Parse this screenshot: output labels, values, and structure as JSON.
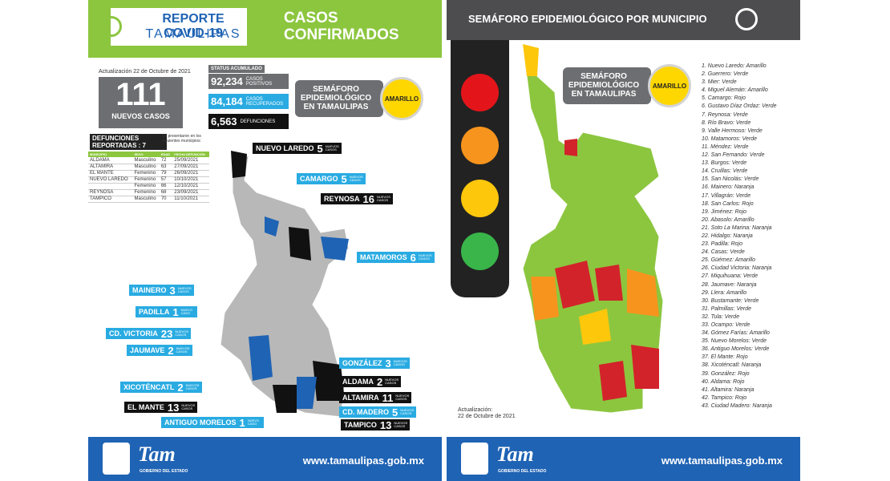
{
  "left": {
    "header": {
      "logo_line1": "REPORTE COVID-19",
      "logo_line2": "TAMAULIPAS",
      "title": "CASOS CONFIRMADOS"
    },
    "update": "Actualización 22 de Octubre de 2021",
    "new_cases": {
      "value": "111",
      "label": "NUEVOS CASOS"
    },
    "status": {
      "header": "STATUS ACUMULADO",
      "rows": [
        {
          "value": "92,234",
          "label": "CASOS POSITIVOS",
          "color": "#6d6e71"
        },
        {
          "value": "84,184",
          "label": "CASOS RECUPERADOS",
          "color": "#29abe2"
        },
        {
          "value": "6,563",
          "label": "DEFUNCIONES",
          "color": "#111111"
        }
      ]
    },
    "semaforo": {
      "label": "SEMÁFORO EPIDEMIOLÓGICO EN TAMAULIPAS",
      "level": "AMARILLO"
    },
    "deaths": {
      "header": "DEFUNCIONES REPORTADAS : 7",
      "note": "Se presentaron en los siguientes municipios:",
      "columns": [
        "MUNICIPIO",
        "SEXO",
        "EDAD",
        "FECHA DEFUNCIÓN"
      ],
      "rows": [
        [
          "ALDAMA",
          "Masculino",
          "72",
          "25/09/2021"
        ],
        [
          "ALTAMIRA",
          "Masculino",
          "63",
          "27/09/2021"
        ],
        [
          "EL MANTE",
          "Femenino",
          "79",
          "26/09/2021"
        ],
        [
          "NUEVO LAREDO",
          "Femenino",
          "57",
          "10/10/2021"
        ],
        [
          "",
          "Femenino",
          "66",
          "12/10/2021"
        ],
        [
          "REYNOSA",
          "Femenino",
          "68",
          "23/09/2021"
        ],
        [
          "TAMPICO",
          "Masculino",
          "70",
          "11/10/2021"
        ]
      ]
    },
    "map_labels": [
      {
        "name": "NUEVO LAREDO",
        "value": "5",
        "cases": "NUEVOS CASOS",
        "style": "black"
      },
      {
        "name": "CAMARGO",
        "value": "5",
        "cases": "NUEVOS CASOS",
        "style": "blue"
      },
      {
        "name": "REYNOSA",
        "value": "16",
        "cases": "NUEVOS CASOS",
        "style": "black"
      },
      {
        "name": "MATAMOROS",
        "value": "6",
        "cases": "NUEVOS CASOS",
        "style": "blue"
      },
      {
        "name": "MAINERO",
        "value": "3",
        "cases": "NUEVOS CASOS",
        "style": "blue"
      },
      {
        "name": "PADILLA",
        "value": "1",
        "cases": "NUEVO CASO",
        "style": "blue"
      },
      {
        "name": "CD. VICTORIA",
        "value": "23",
        "cases": "NUEVOS CASOS",
        "style": "blue"
      },
      {
        "name": "JAUMAVE",
        "value": "2",
        "cases": "NUEVOS CASOS",
        "style": "blue"
      },
      {
        "name": "GONZÁLEZ",
        "value": "3",
        "cases": "NUEVOS CASOS",
        "style": "blue"
      },
      {
        "name": "ALDAMA",
        "value": "2",
        "cases": "NUEVOS CASOS",
        "style": "black"
      },
      {
        "name": "XICOTÉNCATL",
        "value": "2",
        "cases": "NUEVOS CASOS",
        "style": "blue"
      },
      {
        "name": "ALTAMIRA",
        "value": "11",
        "cases": "NUEVOS CASOS",
        "style": "black"
      },
      {
        "name": "EL MANTE",
        "value": "13",
        "cases": "NUEVOS CASOS",
        "style": "black"
      },
      {
        "name": "CD. MADERO",
        "value": "5",
        "cases": "NUEVOS CASOS",
        "style": "blue"
      },
      {
        "name": "ANTIGUO MORELOS",
        "value": "1",
        "cases": "NUEVO CASO",
        "style": "blue"
      },
      {
        "name": "TAMPICO",
        "value": "13",
        "cases": "NUEVOS CASOS",
        "style": "black"
      }
    ],
    "footer": {
      "brand": "Tam",
      "sub": "GOBIERNO DEL ESTADO",
      "url": "www.tamaulipas.gob.mx"
    }
  },
  "right": {
    "header": {
      "title": "SEMÁFORO EPIDEMIOLÓGICO POR MUNICIPIO"
    },
    "semaforo": {
      "label": "SEMÁFORO EPIDEMIOLÓGICO EN TAMAULIPAS",
      "level": "AMARILLO"
    },
    "traffic_light": [
      "#e3151a",
      "#f7941d",
      "#fdc70c",
      "#39b54a"
    ],
    "municipios": [
      "1. Nuevo Laredo: Amarillo",
      "2. Guerrero: Verde",
      "3. Mier: Verde",
      "4. Miguel Alemán: Amarillo",
      "5. Camargo: Rojo",
      "6. Gustavo Díaz Ordaz: Verde",
      "7. Reynosa: Verde",
      "8. Río Bravo: Verde",
      "9. Valle Hermoso: Verde",
      "10. Matamoros: Verde",
      "11. Méndez: Verde",
      "12. San Fernando: Verde",
      "13. Burgos: Verde",
      "14. Cruillas: Verde",
      "15. San Nicolás: Verde",
      "16. Mainero: Naranja",
      "17. Villagrán: Verde",
      "18. San Carlos: Rojo",
      "19. Jiménez: Rojo",
      "20. Abasolo: Amarillo",
      "21. Soto La Marina: Naranja",
      "22. Hidalgo: Naranja",
      "23. Padilla: Rojo",
      "24. Casas: Verde",
      "25. Güémez: Amarillo",
      "26. Ciudad Victoria: Naranja",
      "27. Miquihuana: Verde",
      "28. Jaumave: Naranja",
      "29. Llera: Amarillo",
      "30. Bustamante: Verde",
      "31. Palmillas: Verde",
      "32. Tula: Verde",
      "33. Ocampo: Verde",
      "34. Gómez Farías: Amarillo",
      "35. Nuevo Morelos: Verde",
      "36. Antiguo Morelos: Verde",
      "37. El Mante: Rojo",
      "38. Xicoténcatl: Naranja",
      "39. González: Rojo",
      "40. Aldama: Rojo",
      "41. Altamira: Naranja",
      "42. Tampico: Rojo",
      "43. Ciudad Madero: Naranja"
    ],
    "update": "Actualización:",
    "update_date": "22 de Octubre de 2021",
    "footer": {
      "brand": "Tam",
      "sub": "GOBIERNO DEL ESTADO",
      "url": "www.tamaulipas.gob.mx"
    }
  }
}
